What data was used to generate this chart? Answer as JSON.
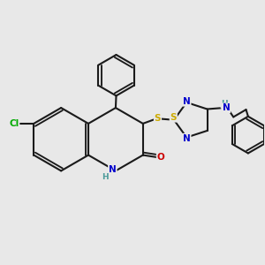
{
  "bg_color": "#e8e8e8",
  "bond_color": "#1a1a1a",
  "bond_width": 1.5,
  "atom_colors": {
    "N": "#0000cc",
    "O": "#cc0000",
    "S": "#ccaa00",
    "Cl": "#00aa00",
    "C": "#1a1a1a",
    "H": "#4a9a9a"
  },
  "font_size": 7.5
}
